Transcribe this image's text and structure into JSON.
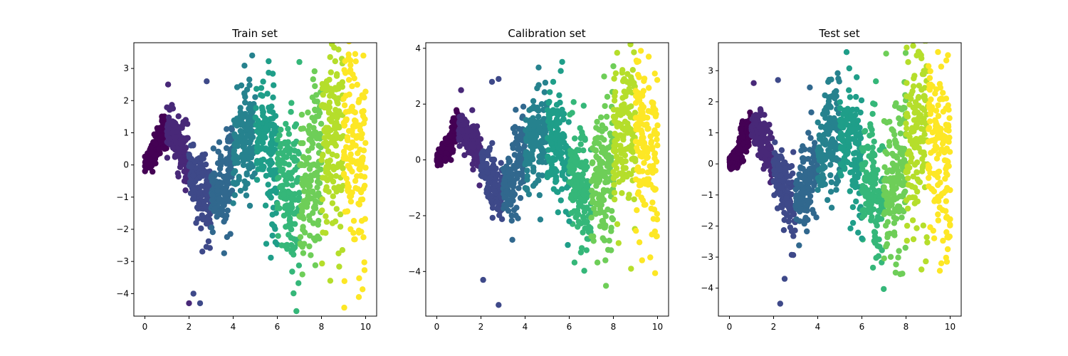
{
  "chart_data": [
    {
      "type": "scatter",
      "title": "Train set",
      "xlabel": "",
      "ylabel": "",
      "xlim": [
        -0.5,
        10.5
      ],
      "ylim": [
        -4.7,
        3.8
      ],
      "xticks": [
        0,
        2,
        4,
        6,
        8,
        10
      ],
      "yticks": [
        -4,
        -3,
        -2,
        -1,
        0,
        1,
        2,
        3
      ],
      "grid": false,
      "colormap": "viridis",
      "color_bins": [
        {
          "x_range": [
            0.0,
            1.0
          ],
          "color": "#440154"
        },
        {
          "x_range": [
            1.0,
            2.0
          ],
          "color": "#482878"
        },
        {
          "x_range": [
            2.0,
            3.0
          ],
          "color": "#3e4989"
        },
        {
          "x_range": [
            3.0,
            4.0
          ],
          "color": "#31688e"
        },
        {
          "x_range": [
            4.0,
            5.0
          ],
          "color": "#26828e"
        },
        {
          "x_range": [
            5.0,
            6.0
          ],
          "color": "#1f9e89"
        },
        {
          "x_range": [
            6.0,
            7.0
          ],
          "color": "#35b779"
        },
        {
          "x_range": [
            7.0,
            8.0
          ],
          "color": "#6ece58"
        },
        {
          "x_range": [
            8.0,
            9.0
          ],
          "color": "#b5de2b"
        },
        {
          "x_range": [
            9.0,
            10.0
          ],
          "color": "#fde725"
        }
      ],
      "outliers": [
        [
          2.0,
          -4.3
        ],
        [
          2.5,
          -4.3
        ],
        [
          2.2,
          -4.0
        ],
        [
          2.8,
          2.6
        ],
        [
          1.05,
          2.5
        ],
        [
          8.4,
          -3.6
        ],
        [
          6.2,
          -2.5
        ],
        [
          5.5,
          -2.45
        ],
        [
          7.0,
          3.2
        ],
        [
          9.9,
          3.4
        ]
      ]
    },
    {
      "type": "scatter",
      "title": "Calibration set",
      "xlabel": "",
      "ylabel": "",
      "xlim": [
        -0.5,
        10.5
      ],
      "ylim": [
        -5.6,
        4.2
      ],
      "xticks": [
        0,
        2,
        4,
        6,
        8,
        10
      ],
      "yticks": [
        -4,
        -2,
        0,
        2,
        4
      ],
      "grid": false,
      "colormap": "viridis",
      "color_bins": [
        {
          "x_range": [
            0.0,
            1.0
          ],
          "color": "#440154"
        },
        {
          "x_range": [
            1.0,
            2.0
          ],
          "color": "#482878"
        },
        {
          "x_range": [
            2.0,
            3.0
          ],
          "color": "#3e4989"
        },
        {
          "x_range": [
            3.0,
            4.0
          ],
          "color": "#31688e"
        },
        {
          "x_range": [
            4.0,
            5.0
          ],
          "color": "#26828e"
        },
        {
          "x_range": [
            5.0,
            6.0
          ],
          "color": "#1f9e89"
        },
        {
          "x_range": [
            6.0,
            7.0
          ],
          "color": "#35b779"
        },
        {
          "x_range": [
            7.0,
            8.0
          ],
          "color": "#6ece58"
        },
        {
          "x_range": [
            8.0,
            9.0
          ],
          "color": "#b5de2b"
        },
        {
          "x_range": [
            9.0,
            10.0
          ],
          "color": "#fde725"
        }
      ],
      "outliers": [
        [
          2.8,
          -5.2
        ],
        [
          2.1,
          -4.3
        ],
        [
          2.5,
          2.8
        ],
        [
          2.8,
          2.9
        ],
        [
          1.1,
          2.5
        ],
        [
          9.6,
          3.7
        ],
        [
          8.8,
          -3.9
        ],
        [
          9.3,
          -3.6
        ],
        [
          6.0,
          -2.2
        ]
      ]
    },
    {
      "type": "scatter",
      "title": "Test set",
      "xlabel": "",
      "ylabel": "",
      "xlim": [
        -0.5,
        10.5
      ],
      "ylim": [
        -4.9,
        3.9
      ],
      "xticks": [
        0,
        2,
        4,
        6,
        8,
        10
      ],
      "yticks": [
        -4,
        -3,
        -2,
        -1,
        0,
        1,
        2,
        3
      ],
      "grid": false,
      "colormap": "viridis",
      "color_bins": [
        {
          "x_range": [
            0.0,
            1.0
          ],
          "color": "#440154"
        },
        {
          "x_range": [
            1.0,
            2.0
          ],
          "color": "#482878"
        },
        {
          "x_range": [
            2.0,
            3.0
          ],
          "color": "#3e4989"
        },
        {
          "x_range": [
            3.0,
            4.0
          ],
          "color": "#31688e"
        },
        {
          "x_range": [
            4.0,
            5.0
          ],
          "color": "#26828e"
        },
        {
          "x_range": [
            5.0,
            6.0
          ],
          "color": "#1f9e89"
        },
        {
          "x_range": [
            6.0,
            7.0
          ],
          "color": "#35b779"
        },
        {
          "x_range": [
            7.0,
            8.0
          ],
          "color": "#6ece58"
        },
        {
          "x_range": [
            8.0,
            9.0
          ],
          "color": "#b5de2b"
        },
        {
          "x_range": [
            9.0,
            10.0
          ],
          "color": "#fde725"
        }
      ],
      "outliers": [
        [
          2.3,
          -4.5
        ],
        [
          2.5,
          -3.7
        ],
        [
          2.2,
          2.7
        ],
        [
          1.1,
          2.6
        ],
        [
          7.1,
          3.55
        ],
        [
          9.9,
          3.5
        ],
        [
          8.7,
          -3.4
        ],
        [
          9.6,
          -3.2
        ],
        [
          6.0,
          -2.4
        ],
        [
          5.6,
          -1.9
        ]
      ]
    }
  ]
}
